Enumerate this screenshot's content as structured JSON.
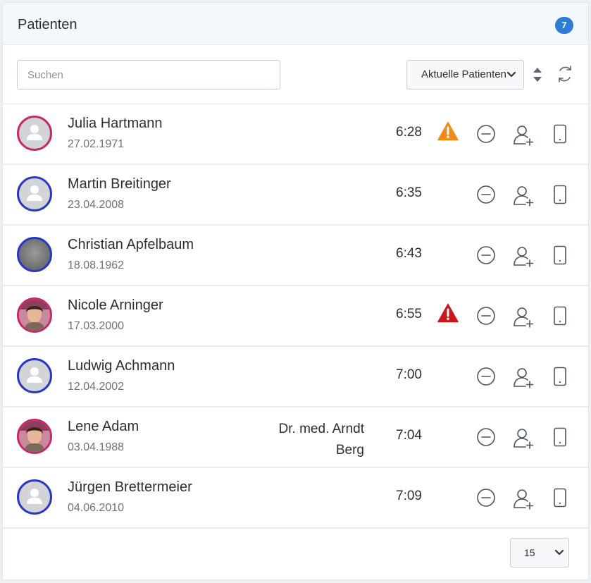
{
  "header": {
    "title": "Patienten",
    "count": "7"
  },
  "toolbar": {
    "search_placeholder": "Suchen",
    "filter_selected": "Aktuelle Patienten"
  },
  "patients": [
    {
      "name": "Julia Hartmann",
      "dob": "27.02.1971",
      "time": "6:28",
      "doctor": "",
      "warning": "orange",
      "gender": "female",
      "photo": "placeholder"
    },
    {
      "name": "Martin Breitinger",
      "dob": "23.04.2008",
      "time": "6:35",
      "doctor": "",
      "warning": "",
      "gender": "male",
      "photo": "placeholder"
    },
    {
      "name": "Christian Apfelbaum",
      "dob": "18.08.1962",
      "time": "6:43",
      "doctor": "",
      "warning": "",
      "gender": "male",
      "photo": "gray"
    },
    {
      "name": "Nicole Arninger",
      "dob": "17.03.2000",
      "time": "6:55",
      "doctor": "",
      "warning": "red",
      "gender": "female",
      "photo": "photo"
    },
    {
      "name": "Ludwig Achmann",
      "dob": "12.04.2002",
      "time": "7:00",
      "doctor": "",
      "warning": "",
      "gender": "male",
      "photo": "placeholder"
    },
    {
      "name": "Lene Adam",
      "dob": "03.04.1988",
      "time": "7:04",
      "doctor": "Dr. med. Arndt Berg",
      "warning": "",
      "gender": "female",
      "photo": "photo"
    },
    {
      "name": "Jürgen Brettermeier",
      "dob": "04.06.2010",
      "time": "7:09",
      "doctor": "",
      "warning": "",
      "gender": "male",
      "photo": "placeholder"
    }
  ],
  "colors": {
    "warning_orange": "#f28a1a",
    "warning_red": "#c8161d",
    "badge": "#2f7bd6",
    "female_ring": "#c7286b",
    "male_ring": "#2937c4"
  },
  "pagination": {
    "page_size": "15"
  }
}
